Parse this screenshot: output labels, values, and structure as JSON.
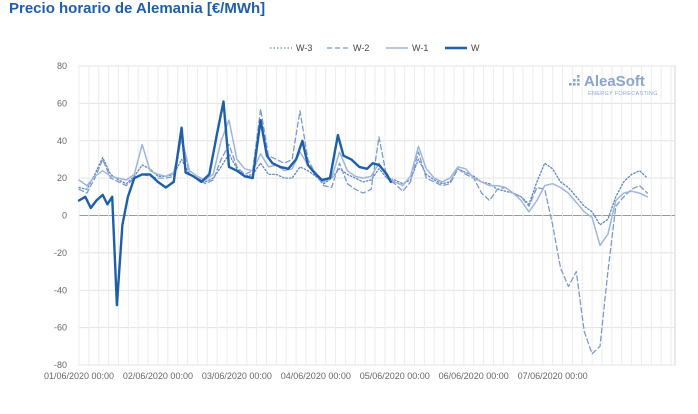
{
  "page": {
    "title": "Precio horario de Alemania [€/MWh]"
  },
  "brand": {
    "name": "AleaSoft",
    "tagline": "ENERGY FORECASTING",
    "color": "#8aa6cf"
  },
  "chart_data": {
    "type": "line",
    "title": "Precio horario de Alemania [€/MWh]",
    "xlabel": "",
    "ylabel": "",
    "ylim": [
      -80,
      80
    ],
    "yticks": [
      -80,
      -60,
      -40,
      -20,
      0,
      20,
      40,
      60,
      80
    ],
    "xlim": [
      0,
      7.55
    ],
    "xticks": [
      {
        "x": 0,
        "label": "01/06/2020 00:00"
      },
      {
        "x": 1,
        "label": "02/06/2020 00:00"
      },
      {
        "x": 2,
        "label": "03/06/2020 00:00"
      },
      {
        "x": 3,
        "label": "04/06/2020 00:00"
      },
      {
        "x": 4,
        "label": "05/06/2020 00:00"
      },
      {
        "x": 5,
        "label": "06/06/2020 00:00"
      },
      {
        "x": 6,
        "label": "07/06/2020 00:00"
      }
    ],
    "grid": true,
    "legend_position": "top",
    "series": [
      {
        "name": "W-3",
        "style": "dotted",
        "color": "#5f86c2",
        "points": [
          [
            0,
            15
          ],
          [
            0.1,
            14
          ],
          [
            0.2,
            22
          ],
          [
            0.3,
            31
          ],
          [
            0.4,
            22
          ],
          [
            0.5,
            19
          ],
          [
            0.6,
            17
          ],
          [
            0.7,
            21
          ],
          [
            0.8,
            27
          ],
          [
            0.9,
            25
          ],
          [
            1.0,
            21
          ],
          [
            1.1,
            21
          ],
          [
            1.2,
            22
          ],
          [
            1.3,
            30
          ],
          [
            1.4,
            22
          ],
          [
            1.5,
            20
          ],
          [
            1.6,
            18
          ],
          [
            1.7,
            20
          ],
          [
            1.8,
            26
          ],
          [
            1.9,
            33
          ],
          [
            2.0,
            25
          ],
          [
            2.1,
            21
          ],
          [
            2.2,
            22
          ],
          [
            2.3,
            28
          ],
          [
            2.4,
            22
          ],
          [
            2.5,
            22
          ],
          [
            2.6,
            20
          ],
          [
            2.7,
            20
          ],
          [
            2.8,
            26
          ],
          [
            2.9,
            24
          ],
          [
            3.0,
            21
          ],
          [
            3.1,
            17
          ],
          [
            3.2,
            20
          ],
          [
            3.3,
            25
          ],
          [
            3.4,
            22
          ],
          [
            3.5,
            20
          ],
          [
            3.6,
            18
          ],
          [
            3.7,
            19
          ],
          [
            3.8,
            25
          ],
          [
            3.9,
            20
          ],
          [
            4.0,
            19
          ],
          [
            4.1,
            17
          ],
          [
            4.2,
            19
          ],
          [
            4.3,
            30
          ],
          [
            4.4,
            22
          ],
          [
            4.5,
            19
          ],
          [
            4.6,
            17
          ],
          [
            4.7,
            18
          ],
          [
            4.8,
            25
          ],
          [
            4.9,
            23
          ],
          [
            5.0,
            21
          ],
          [
            5.1,
            18
          ],
          [
            5.2,
            17
          ],
          [
            5.3,
            14
          ],
          [
            5.4,
            13
          ],
          [
            5.5,
            12
          ],
          [
            5.6,
            10
          ],
          [
            5.7,
            6
          ],
          [
            5.8,
            18
          ],
          [
            5.9,
            28
          ],
          [
            6.0,
            25
          ],
          [
            6.1,
            18
          ],
          [
            6.2,
            15
          ],
          [
            6.3,
            10
          ],
          [
            6.4,
            5
          ],
          [
            6.5,
            2
          ],
          [
            6.6,
            -5
          ],
          [
            6.7,
            -2
          ],
          [
            6.8,
            10
          ],
          [
            6.9,
            18
          ],
          [
            7.0,
            22
          ],
          [
            7.1,
            24
          ],
          [
            7.2,
            20
          ]
        ]
      },
      {
        "name": "W-2",
        "style": "dashed",
        "color": "#7a9bcf",
        "points": [
          [
            0,
            14
          ],
          [
            0.1,
            12
          ],
          [
            0.2,
            20
          ],
          [
            0.3,
            30
          ],
          [
            0.4,
            20
          ],
          [
            0.5,
            18
          ],
          [
            0.6,
            16
          ],
          [
            0.7,
            20
          ],
          [
            0.8,
            22
          ],
          [
            0.9,
            21
          ],
          [
            1.0,
            20
          ],
          [
            1.1,
            20
          ],
          [
            1.2,
            21
          ],
          [
            1.3,
            41
          ],
          [
            1.4,
            22
          ],
          [
            1.5,
            20
          ],
          [
            1.6,
            17
          ],
          [
            1.7,
            19
          ],
          [
            1.8,
            30
          ],
          [
            1.9,
            38
          ],
          [
            2.0,
            26
          ],
          [
            2.1,
            22
          ],
          [
            2.2,
            24
          ],
          [
            2.3,
            57
          ],
          [
            2.4,
            32
          ],
          [
            2.5,
            30
          ],
          [
            2.6,
            28
          ],
          [
            2.7,
            30
          ],
          [
            2.8,
            56
          ],
          [
            2.9,
            30
          ],
          [
            3.0,
            22
          ],
          [
            3.1,
            16
          ],
          [
            3.2,
            15
          ],
          [
            3.3,
            28
          ],
          [
            3.4,
            17
          ],
          [
            3.5,
            14
          ],
          [
            3.6,
            12
          ],
          [
            3.7,
            14
          ],
          [
            3.8,
            42
          ],
          [
            3.9,
            20
          ],
          [
            4.0,
            17
          ],
          [
            4.1,
            13
          ],
          [
            4.2,
            18
          ],
          [
            4.3,
            34
          ],
          [
            4.4,
            20
          ],
          [
            4.5,
            18
          ],
          [
            4.6,
            16
          ],
          [
            4.7,
            17
          ],
          [
            4.8,
            25
          ],
          [
            4.9,
            22
          ],
          [
            5.0,
            20
          ],
          [
            5.1,
            12
          ],
          [
            5.2,
            8
          ],
          [
            5.3,
            14
          ],
          [
            5.4,
            15
          ],
          [
            5.5,
            12
          ],
          [
            5.6,
            10
          ],
          [
            5.7,
            5
          ],
          [
            5.8,
            15
          ],
          [
            5.9,
            14
          ],
          [
            6.0,
            -5
          ],
          [
            6.1,
            -28
          ],
          [
            6.2,
            -38
          ],
          [
            6.3,
            -30
          ],
          [
            6.4,
            -62
          ],
          [
            6.5,
            -74
          ],
          [
            6.6,
            -70
          ],
          [
            6.7,
            -30
          ],
          [
            6.8,
            5
          ],
          [
            6.9,
            10
          ],
          [
            7.0,
            14
          ],
          [
            7.1,
            16
          ],
          [
            7.2,
            12
          ]
        ]
      },
      {
        "name": "W-1",
        "style": "solid",
        "color": "#9fb6dc",
        "points": [
          [
            0,
            19
          ],
          [
            0.1,
            16
          ],
          [
            0.2,
            21
          ],
          [
            0.3,
            24
          ],
          [
            0.4,
            21
          ],
          [
            0.5,
            20
          ],
          [
            0.6,
            19
          ],
          [
            0.7,
            22
          ],
          [
            0.8,
            38
          ],
          [
            0.9,
            24
          ],
          [
            1.0,
            22
          ],
          [
            1.1,
            21
          ],
          [
            1.2,
            23
          ],
          [
            1.3,
            42
          ],
          [
            1.4,
            24
          ],
          [
            1.5,
            21
          ],
          [
            1.6,
            19
          ],
          [
            1.7,
            22
          ],
          [
            1.8,
            40
          ],
          [
            1.9,
            51
          ],
          [
            2.0,
            30
          ],
          [
            2.1,
            25
          ],
          [
            2.2,
            24
          ],
          [
            2.3,
            33
          ],
          [
            2.4,
            26
          ],
          [
            2.5,
            27
          ],
          [
            2.6,
            24
          ],
          [
            2.7,
            25
          ],
          [
            2.8,
            34
          ],
          [
            2.9,
            27
          ],
          [
            3.0,
            23
          ],
          [
            3.1,
            18
          ],
          [
            3.2,
            20
          ],
          [
            3.3,
            34
          ],
          [
            3.4,
            24
          ],
          [
            3.5,
            21
          ],
          [
            3.6,
            20
          ],
          [
            3.7,
            21
          ],
          [
            3.8,
            28
          ],
          [
            3.9,
            21
          ],
          [
            4.0,
            18
          ],
          [
            4.1,
            16
          ],
          [
            4.2,
            21
          ],
          [
            4.3,
            37
          ],
          [
            4.4,
            25
          ],
          [
            4.5,
            20
          ],
          [
            4.6,
            18
          ],
          [
            4.7,
            20
          ],
          [
            4.8,
            26
          ],
          [
            4.9,
            25
          ],
          [
            5.0,
            20
          ],
          [
            5.1,
            18
          ],
          [
            5.2,
            16
          ],
          [
            5.3,
            16
          ],
          [
            5.4,
            15
          ],
          [
            5.5,
            12
          ],
          [
            5.6,
            8
          ],
          [
            5.7,
            2
          ],
          [
            5.8,
            8
          ],
          [
            5.9,
            16
          ],
          [
            6.0,
            17
          ],
          [
            6.1,
            15
          ],
          [
            6.2,
            12
          ],
          [
            6.3,
            7
          ],
          [
            6.4,
            2
          ],
          [
            6.5,
            -1
          ],
          [
            6.6,
            -16
          ],
          [
            6.7,
            -10
          ],
          [
            6.8,
            8
          ],
          [
            6.9,
            12
          ],
          [
            7.0,
            13
          ],
          [
            7.1,
            12
          ],
          [
            7.2,
            10
          ]
        ]
      },
      {
        "name": "W",
        "style": "solid-bold",
        "color": "#1f5fa8",
        "points": [
          [
            0,
            8
          ],
          [
            0.08,
            10
          ],
          [
            0.15,
            4
          ],
          [
            0.22,
            8
          ],
          [
            0.3,
            11
          ],
          [
            0.36,
            6
          ],
          [
            0.42,
            10
          ],
          [
            0.48,
            -48
          ],
          [
            0.55,
            -5
          ],
          [
            0.62,
            10
          ],
          [
            0.7,
            20
          ],
          [
            0.8,
            22
          ],
          [
            0.9,
            22
          ],
          [
            1.0,
            18
          ],
          [
            1.1,
            15
          ],
          [
            1.2,
            18
          ],
          [
            1.3,
            47
          ],
          [
            1.35,
            23
          ],
          [
            1.45,
            21
          ],
          [
            1.55,
            18
          ],
          [
            1.65,
            22
          ],
          [
            1.75,
            44
          ],
          [
            1.83,
            61
          ],
          [
            1.9,
            26
          ],
          [
            2.0,
            24
          ],
          [
            2.1,
            21
          ],
          [
            2.2,
            20
          ],
          [
            2.3,
            51
          ],
          [
            2.38,
            32
          ],
          [
            2.45,
            28
          ],
          [
            2.55,
            26
          ],
          [
            2.65,
            25
          ],
          [
            2.75,
            30
          ],
          [
            2.83,
            40
          ],
          [
            2.9,
            27
          ],
          [
            3.0,
            22
          ],
          [
            3.08,
            19
          ],
          [
            3.18,
            20
          ],
          [
            3.28,
            43
          ],
          [
            3.35,
            32
          ],
          [
            3.45,
            30
          ],
          [
            3.55,
            26
          ],
          [
            3.65,
            25
          ],
          [
            3.72,
            28
          ],
          [
            3.8,
            27
          ],
          [
            3.9,
            22
          ],
          [
            3.95,
            18
          ]
        ]
      }
    ]
  }
}
